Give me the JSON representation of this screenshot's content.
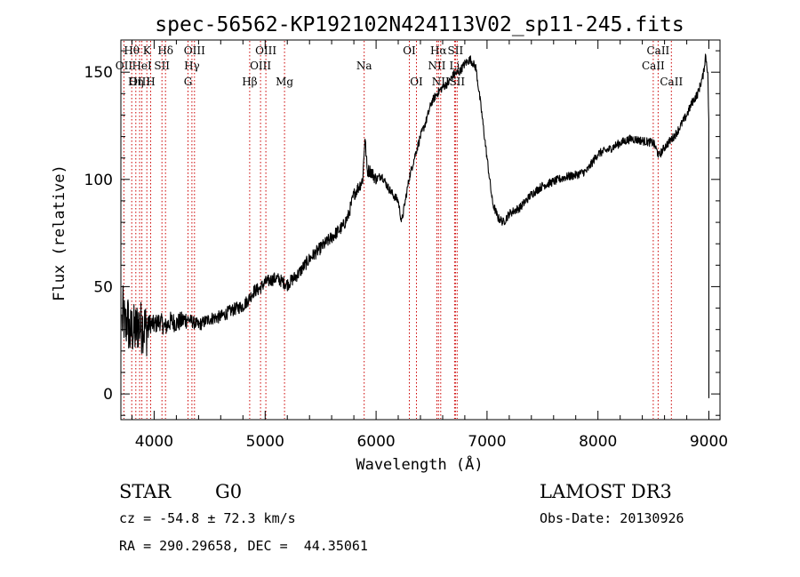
{
  "chart_data": {
    "type": "line",
    "title": "spec-56562-KP192102N424113V02_sp11-245.fits",
    "xlabel": "Wavelength (Å)",
    "ylabel": "Flux (relative)",
    "xlim": [
      3700,
      9100
    ],
    "ylim": [
      -12,
      165
    ],
    "xticks": [
      4000,
      5000,
      6000,
      7000,
      8000,
      9000
    ],
    "yticks": [
      0,
      50,
      100,
      150
    ],
    "grid": false,
    "spectrum": {
      "wavelength": [
        3700,
        3720,
        3740,
        3760,
        3780,
        3800,
        3830,
        3860,
        3880,
        3900,
        3930,
        3960,
        4000,
        4050,
        4100,
        4150,
        4200,
        4300,
        4400,
        4500,
        4600,
        4700,
        4800,
        4850,
        4900,
        4950,
        5000,
        5100,
        5200,
        5300,
        5400,
        5500,
        5600,
        5700,
        5750,
        5800,
        5850,
        5880,
        5900,
        5920,
        5950,
        6000,
        6050,
        6100,
        6150,
        6200,
        6230,
        6250,
        6270,
        6300,
        6350,
        6400,
        6450,
        6500,
        6550,
        6600,
        6650,
        6700,
        6750,
        6800,
        6850,
        6900,
        6950,
        7000,
        7050,
        7100,
        7150,
        7200,
        7300,
        7400,
        7500,
        7600,
        7700,
        7800,
        7900,
        8000,
        8100,
        8200,
        8300,
        8400,
        8500,
        8550,
        8600,
        8700,
        8800,
        8850,
        8900,
        8950,
        8970,
        8990,
        9000
      ],
      "flux": [
        28,
        38,
        30,
        36,
        27,
        30,
        29,
        33,
        31,
        32,
        30,
        33,
        32,
        34,
        31,
        34,
        33,
        35,
        32,
        35,
        36,
        39,
        41,
        44,
        48,
        49,
        52,
        54,
        51,
        56,
        63,
        68,
        73,
        78,
        83,
        93,
        97,
        100,
        120,
        104,
        104,
        100,
        102,
        97,
        93,
        90,
        80,
        86,
        92,
        101,
        111,
        120,
        127,
        136,
        140,
        143,
        145,
        149,
        150,
        154,
        156,
        152,
        132,
        110,
        89,
        82,
        80,
        84,
        87,
        93,
        97,
        99,
        101,
        102,
        104,
        112,
        114,
        117,
        119,
        118,
        117,
        111,
        115,
        121,
        130,
        136,
        140,
        149,
        158,
        150,
        125
      ]
    },
    "line_labels": [
      {
        "name": "Hθ",
        "wavelength": 3798,
        "row": 0
      },
      {
        "name": "OII",
        "wavelength": 3727,
        "row": 1
      },
      {
        "name": "OIII",
        "wavelength": 3869,
        "row": 2
      },
      {
        "name": "K",
        "wavelength": 3934,
        "row": 0
      },
      {
        "name": "Hδ",
        "wavelength": 4102,
        "row": 0
      },
      {
        "name": "HeI",
        "wavelength": 3889,
        "row": 1
      },
      {
        "name": "SII",
        "wavelength": 4070,
        "row": 1
      },
      {
        "name": "Hη",
        "wavelength": 3835,
        "row": 2
      },
      {
        "name": "H",
        "wavelength": 3968,
        "row": 2
      },
      {
        "name": "OIII",
        "wavelength": 4363,
        "row": 0
      },
      {
        "name": "Hγ",
        "wavelength": 4340,
        "row": 1
      },
      {
        "name": "G",
        "wavelength": 4305,
        "row": 2
      },
      {
        "name": "OIII",
        "wavelength": 5007,
        "row": 0
      },
      {
        "name": "OIII",
        "wavelength": 4959,
        "row": 1
      },
      {
        "name": "Hβ",
        "wavelength": 4861,
        "row": 2
      },
      {
        "name": "Mg",
        "wavelength": 5175,
        "row": 2
      },
      {
        "name": "Na",
        "wavelength": 5893,
        "row": 1
      },
      {
        "name": "OI",
        "wavelength": 6300,
        "row": 0
      },
      {
        "name": "OI",
        "wavelength": 6364,
        "row": 2
      },
      {
        "name": "Hα",
        "wavelength": 6563,
        "row": 0
      },
      {
        "name": "SII",
        "wavelength": 6716,
        "row": 0
      },
      {
        "name": "NII",
        "wavelength": 6548,
        "row": 1
      },
      {
        "name": "Li",
        "wavelength": 6708,
        "row": 1
      },
      {
        "name": "NII",
        "wavelength": 6583,
        "row": 2
      },
      {
        "name": "SII",
        "wavelength": 6731,
        "row": 2
      },
      {
        "name": "CaII",
        "wavelength": 8542,
        "row": 0
      },
      {
        "name": "CaII",
        "wavelength": 8498,
        "row": 1
      },
      {
        "name": "CaII",
        "wavelength": 8662,
        "row": 2
      }
    ]
  },
  "footer": {
    "object_class": "STAR",
    "subclass": "G0",
    "survey": "LAMOST DR3",
    "redshift": "cz = -54.8 ± 72.3 km/s",
    "obs_date": "Obs-Date: 20130926",
    "coordinates": "RA = 290.29658, DEC =  44.35061"
  }
}
